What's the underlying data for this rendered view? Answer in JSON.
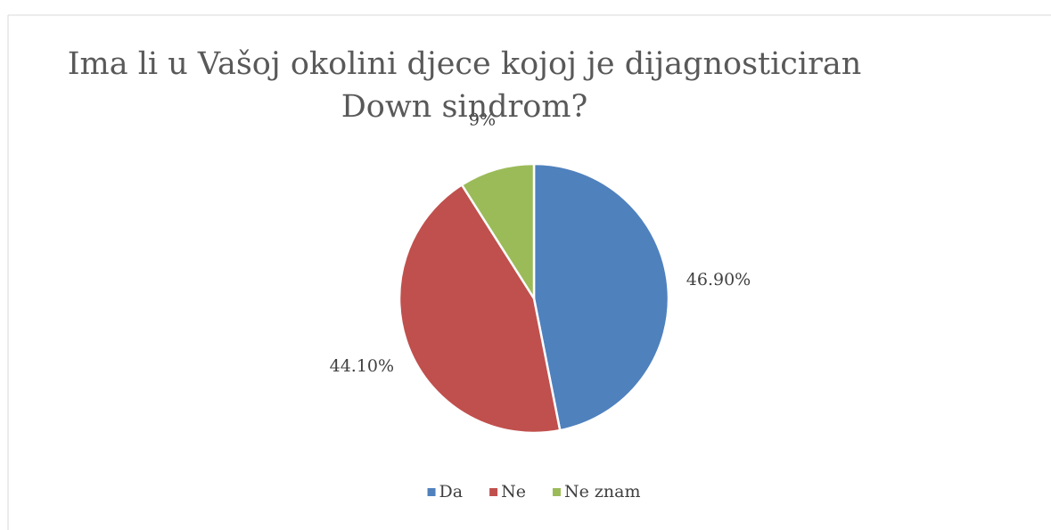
{
  "chart_data": {
    "type": "pie",
    "title": "Ima li u Vašoj okolini djece kojoj je dijagnosticiran Down sindrom?",
    "categories": [
      "Da",
      "Ne",
      "Ne znam"
    ],
    "values": [
      46.9,
      44.1,
      9
    ],
    "value_labels": [
      "46.90%",
      "44.10%",
      "9%"
    ],
    "colors": [
      "#4f81bd",
      "#c0504d",
      "#9bbb59"
    ],
    "legend": "bottom"
  }
}
